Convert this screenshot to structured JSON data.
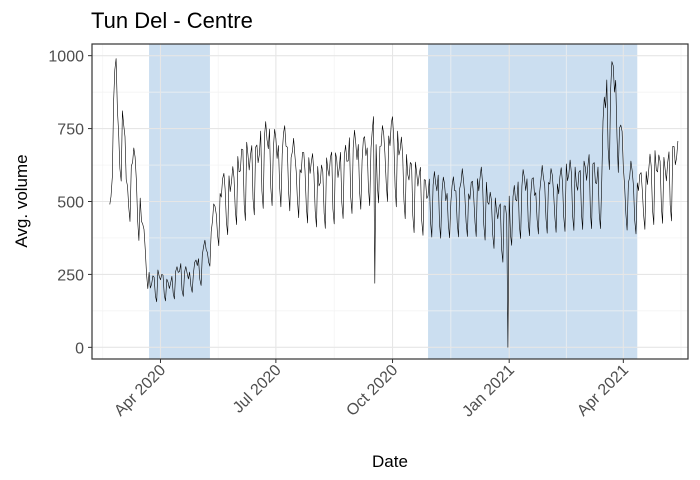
{
  "chart_data": {
    "type": "line",
    "title": "Tun Del - Centre",
    "xlabel": "Date",
    "ylabel": "Avg. volume",
    "xlim": [
      "2020-02-07",
      "2021-05-22"
    ],
    "ylim": [
      -40,
      1040
    ],
    "x_ticks": [
      {
        "date": "2020-04-01",
        "label": "Apr 2020"
      },
      {
        "date": "2020-07-01",
        "label": "Jul 2020"
      },
      {
        "date": "2020-10-01",
        "label": "Oct 2020"
      },
      {
        "date": "2021-01-01",
        "label": "Jan 2021"
      },
      {
        "date": "2021-04-01",
        "label": "Apr 2021"
      }
    ],
    "y_ticks": [
      0,
      250,
      500,
      750,
      1000
    ],
    "grid": true,
    "legend": "none",
    "colors": {
      "line": "#000000",
      "shade": "#a9c8e6",
      "grid": "#e6e6e6"
    },
    "shaded_periods": [
      {
        "start": "2020-03-23",
        "end": "2020-05-10"
      },
      {
        "start": "2020-10-29",
        "end": "2021-04-12"
      }
    ],
    "series": [
      {
        "anchors": [
          [
            "2020-02-21",
            490
          ],
          [
            "2020-02-23",
            860
          ],
          [
            "2020-02-26",
            920
          ],
          [
            "2020-02-28",
            760
          ],
          [
            "2020-03-02",
            880
          ],
          [
            "2020-03-05",
            600
          ],
          [
            "2020-03-10",
            660
          ],
          [
            "2020-03-15",
            540
          ],
          [
            "2020-03-18",
            420
          ],
          [
            "2020-03-21",
            330
          ],
          [
            "2020-03-24",
            230
          ],
          [
            "2020-04-01",
            230
          ],
          [
            "2020-04-10",
            240
          ],
          [
            "2020-04-20",
            260
          ],
          [
            "2020-04-30",
            290
          ],
          [
            "2020-05-08",
            350
          ],
          [
            "2020-05-12",
            470
          ],
          [
            "2020-05-20",
            540
          ],
          [
            "2020-05-31",
            620
          ],
          [
            "2020-06-10",
            650
          ],
          [
            "2020-06-20",
            700
          ],
          [
            "2020-06-30",
            720
          ],
          [
            "2020-07-10",
            700
          ],
          [
            "2020-07-20",
            650
          ],
          [
            "2020-07-31",
            610
          ],
          [
            "2020-08-10",
            600
          ],
          [
            "2020-08-20",
            640
          ],
          [
            "2020-08-31",
            680
          ],
          [
            "2020-09-10",
            710
          ],
          [
            "2020-09-20",
            730
          ],
          [
            "2020-09-30",
            740
          ],
          [
            "2020-10-08",
            680
          ],
          [
            "2020-10-18",
            580
          ],
          [
            "2020-10-28",
            560
          ],
          [
            "2020-11-10",
            550
          ],
          [
            "2020-11-25",
            560
          ],
          [
            "2020-12-10",
            560
          ],
          [
            "2020-12-20",
            500
          ],
          [
            "2020-12-27",
            430
          ],
          [
            "2021-01-05",
            540
          ],
          [
            "2021-01-20",
            570
          ],
          [
            "2021-02-05",
            580
          ],
          [
            "2021-02-20",
            590
          ],
          [
            "2021-03-05",
            600
          ],
          [
            "2021-03-15",
            600
          ],
          [
            "2021-03-17",
            870
          ],
          [
            "2021-03-27",
            940
          ],
          [
            "2021-04-02",
            600
          ],
          [
            "2021-04-10",
            570
          ],
          [
            "2021-04-25",
            620
          ],
          [
            "2021-05-05",
            630
          ],
          [
            "2021-05-14",
            650
          ]
        ],
        "weekly_dip": 190,
        "weekly_peak": 45,
        "spikes": [
          [
            "2020-09-17",
            220
          ],
          [
            "2020-12-31",
            0
          ]
        ]
      }
    ]
  }
}
